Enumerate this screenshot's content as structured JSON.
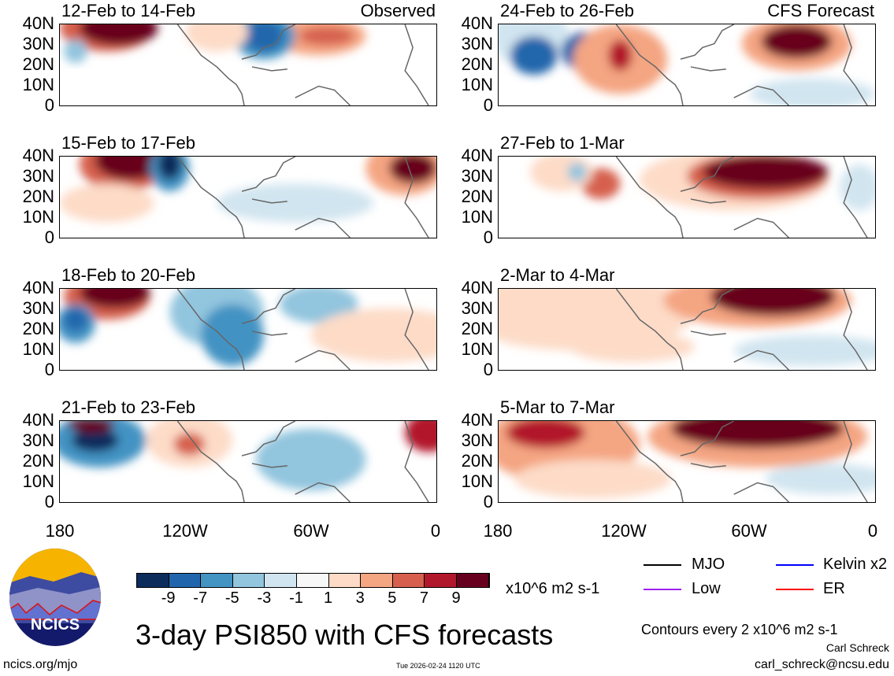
{
  "panels": [
    {
      "title": "12-Feb to 14-Feb",
      "label": "Observed"
    },
    {
      "title": "24-Feb to 26-Feb",
      "label": "CFS Forecast"
    },
    {
      "title": "15-Feb to 17-Feb",
      "label": ""
    },
    {
      "title": "27-Feb to 1-Mar",
      "label": ""
    },
    {
      "title": "18-Feb to 20-Feb",
      "label": ""
    },
    {
      "title": "2-Mar to 4-Mar",
      "label": ""
    },
    {
      "title": "21-Feb to 23-Feb",
      "label": ""
    },
    {
      "title": "5-Mar to 7-Mar",
      "label": ""
    }
  ],
  "y_ticks": [
    "40N",
    "30N",
    "20N",
    "10N",
    "0"
  ],
  "x_ticks": [
    "180",
    "120W",
    "60W",
    "0"
  ],
  "colorbar": {
    "colors": [
      "#0c2c5c",
      "#2166ac",
      "#4393c3",
      "#92c5de",
      "#d1e5f0",
      "#f7f7f7",
      "#fddbc7",
      "#f4a582",
      "#d6604d",
      "#b2182b",
      "#67001f"
    ],
    "ticks": [
      "-9",
      "-7",
      "-5",
      "-3",
      "-1",
      "1",
      "3",
      "5",
      "7",
      "9"
    ],
    "units": "x10^6 m2 s-1"
  },
  "legend": [
    {
      "label": "MJO",
      "color": "#000000"
    },
    {
      "label": "Kelvin x2",
      "color": "#0000ff"
    },
    {
      "label": "Low",
      "color": "#a020f0"
    },
    {
      "label": "ER",
      "color": "#ff0000"
    }
  ],
  "contour_note": "Contours every 2 x10^6 m2 s-1",
  "title": "3-day PSI850 with CFS forecasts",
  "logo_text": "NCICS",
  "site": "ncics.org/mjo",
  "timestamp": "Tue 2026-02-24 1120 UTC",
  "author": "Carl Schreck",
  "email": "carl_schreck@ncsu.edu"
}
